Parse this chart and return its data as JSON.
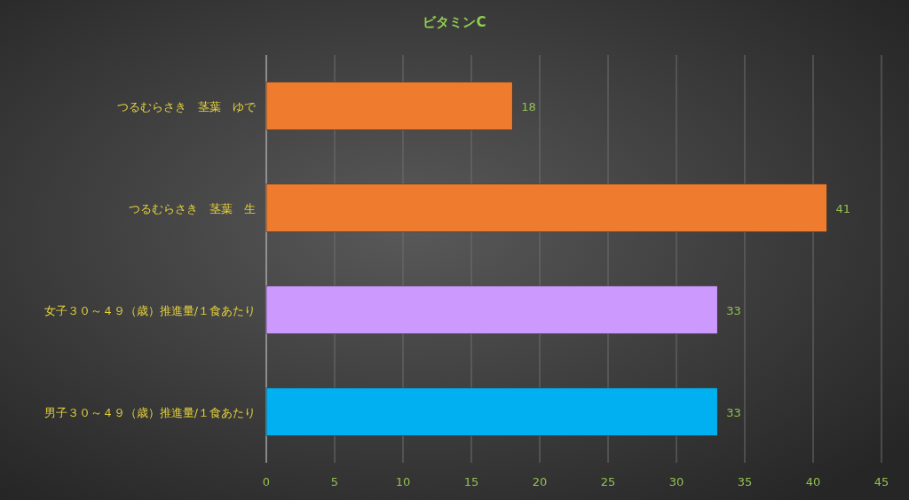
{
  "chart_data": {
    "type": "bar",
    "orientation": "horizontal",
    "title": "ビタミンC",
    "categories": [
      "つるむらさき　茎葉　ゆで",
      "つるむらさき　茎葉　生",
      "女子３０～４９（歳）推進量/１食あたり",
      "男子３０～４９（歳）推進量/１食あたり"
    ],
    "values": [
      18,
      41,
      33,
      33
    ],
    "colors": [
      "#ef7b2e",
      "#ef7b2e",
      "#cc99ff",
      "#00b0f0"
    ],
    "xlim": [
      0,
      45
    ],
    "xticks": [
      0,
      5,
      10,
      15,
      20,
      25,
      30,
      35,
      40,
      45
    ],
    "grid": "x",
    "data_labels": true
  }
}
